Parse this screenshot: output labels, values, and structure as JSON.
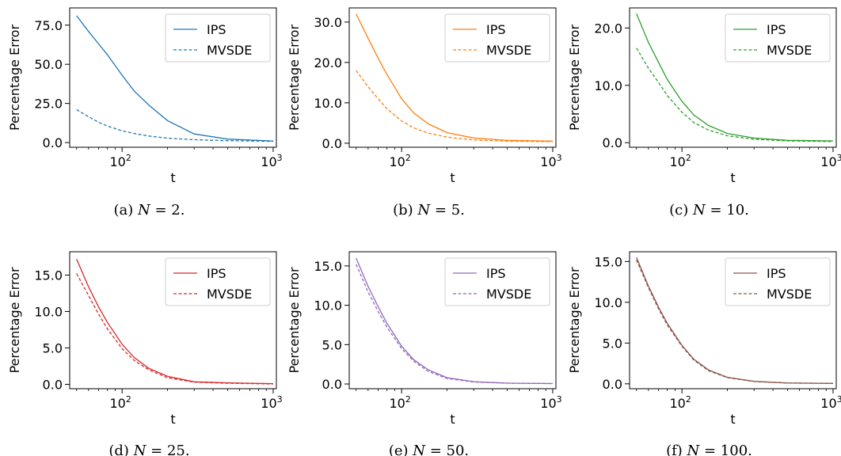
{
  "chart_data": [
    {
      "type": "line",
      "caption_letter": "(a)",
      "caption_N": "2",
      "xlabel": "t",
      "ylabel": "Percentage Error",
      "xscale": "log",
      "xlim": [
        45,
        1050
      ],
      "ylim": [
        -3,
        86
      ],
      "yticks": [
        "0.0",
        "25.0",
        "50.0",
        "75.0"
      ],
      "color": "#1f77b4",
      "legend": "top-right",
      "series": [
        {
          "name": "IPS",
          "style": "solid",
          "x": [
            50,
            60,
            70,
            80,
            100,
            120,
            150,
            200,
            300,
            500,
            1000
          ],
          "y": [
            81,
            71,
            63,
            56,
            43,
            33,
            24,
            14,
            5.5,
            2.2,
            1.0
          ]
        },
        {
          "name": "MVSDE",
          "style": "dashed",
          "x": [
            50,
            60,
            70,
            80,
            100,
            120,
            150,
            200,
            300,
            500,
            1000
          ],
          "y": [
            21,
            16.5,
            13,
            10.5,
            7.5,
            5.8,
            4.2,
            2.8,
            1.8,
            1.2,
            0.8
          ]
        }
      ]
    },
    {
      "type": "line",
      "caption_letter": "(b)",
      "caption_N": "5",
      "xlabel": "t",
      "ylabel": "Percentage Error",
      "xscale": "log",
      "xlim": [
        45,
        1050
      ],
      "ylim": [
        -1,
        33.5
      ],
      "yticks": [
        "0.0",
        "10.0",
        "20.0",
        "30.0"
      ],
      "color": "#ff7f0e",
      "legend": "top-right",
      "series": [
        {
          "name": "IPS",
          "style": "solid",
          "x": [
            50,
            60,
            70,
            80,
            100,
            120,
            150,
            200,
            300,
            500,
            1000
          ],
          "y": [
            32,
            26,
            21,
            17,
            11,
            7.5,
            4.8,
            2.6,
            1.3,
            0.7,
            0.5
          ]
        },
        {
          "name": "MVSDE",
          "style": "dashed",
          "x": [
            50,
            60,
            70,
            80,
            100,
            120,
            150,
            200,
            300,
            500,
            1000
          ],
          "y": [
            18,
            14,
            11,
            8.5,
            5.5,
            3.8,
            2.5,
            1.5,
            0.8,
            0.5,
            0.4
          ]
        }
      ]
    },
    {
      "type": "line",
      "caption_letter": "(c)",
      "caption_N": "10",
      "xlabel": "t",
      "ylabel": "Percentage Error",
      "xscale": "log",
      "xlim": [
        45,
        1050
      ],
      "ylim": [
        -0.8,
        23.5
      ],
      "yticks": [
        "0.0",
        "10.0",
        "20.0"
      ],
      "color": "#2ca02c",
      "legend": "top-right",
      "series": [
        {
          "name": "IPS",
          "style": "solid",
          "x": [
            50,
            60,
            70,
            80,
            100,
            120,
            150,
            200,
            300,
            500,
            1000
          ],
          "y": [
            22.5,
            17.5,
            14,
            11,
            7.2,
            4.8,
            3.0,
            1.6,
            0.8,
            0.4,
            0.3
          ]
        },
        {
          "name": "MVSDE",
          "style": "dashed",
          "x": [
            50,
            60,
            70,
            80,
            100,
            120,
            150,
            200,
            300,
            500,
            1000
          ],
          "y": [
            16.5,
            13,
            10.5,
            8.2,
            5.3,
            3.5,
            2.2,
            1.2,
            0.6,
            0.3,
            0.2
          ]
        }
      ]
    },
    {
      "type": "line",
      "caption_letter": "(d)",
      "caption_N": "25",
      "xlabel": "t",
      "ylabel": "Percentage Error",
      "xscale": "log",
      "xlim": [
        45,
        1050
      ],
      "ylim": [
        -0.6,
        18.2
      ],
      "yticks": [
        "0.0",
        "5.0",
        "10.0",
        "15.0"
      ],
      "color": "#d62728",
      "legend": "top-right",
      "series": [
        {
          "name": "IPS",
          "style": "solid",
          "x": [
            50,
            60,
            70,
            80,
            100,
            120,
            150,
            200,
            300,
            500,
            1000
          ],
          "y": [
            17.2,
            13.4,
            10.6,
            8.5,
            5.5,
            3.7,
            2.2,
            1.1,
            0.35,
            0.2,
            0.1
          ]
        },
        {
          "name": "MVSDE",
          "style": "dashed",
          "x": [
            50,
            60,
            70,
            80,
            100,
            120,
            150,
            200,
            300,
            500,
            1000
          ],
          "y": [
            15.2,
            12.2,
            9.6,
            7.6,
            4.9,
            3.3,
            2.0,
            0.9,
            0.3,
            0.15,
            0.05
          ]
        }
      ]
    },
    {
      "type": "line",
      "caption_letter": "(e)",
      "caption_N": "50",
      "xlabel": "t",
      "ylabel": "Percentage Error",
      "xscale": "log",
      "xlim": [
        45,
        1050
      ],
      "ylim": [
        -0.6,
        16.8
      ],
      "yticks": [
        "0.0",
        "5.0",
        "10.0",
        "15.0"
      ],
      "color": "#9467bd",
      "legend": "top-right",
      "series": [
        {
          "name": "IPS",
          "style": "solid",
          "x": [
            50,
            60,
            70,
            80,
            100,
            120,
            150,
            200,
            300,
            500,
            1000
          ],
          "y": [
            16.0,
            12.4,
            9.8,
            7.7,
            4.8,
            3.1,
            1.8,
            0.8,
            0.3,
            0.1,
            0.05
          ]
        },
        {
          "name": "MVSDE",
          "style": "dashed",
          "x": [
            50,
            60,
            70,
            80,
            100,
            120,
            150,
            200,
            300,
            500,
            1000
          ],
          "y": [
            15.2,
            11.7,
            9.2,
            7.2,
            4.5,
            2.9,
            1.6,
            0.7,
            0.25,
            0.1,
            0.05
          ]
        }
      ]
    },
    {
      "type": "line",
      "caption_letter": "(f)",
      "caption_N": "100",
      "xlabel": "t",
      "ylabel": "Percentage Error",
      "xscale": "log",
      "xlim": [
        45,
        1050
      ],
      "ylim": [
        -0.6,
        16.2
      ],
      "yticks": [
        "0.0",
        "5.0",
        "10.0",
        "15.0"
      ],
      "color": "#8c564b",
      "legend": "top-right",
      "series": [
        {
          "name": "IPS",
          "style": "solid",
          "x": [
            50,
            60,
            70,
            80,
            100,
            120,
            150,
            200,
            300,
            500,
            1000
          ],
          "y": [
            15.5,
            12.0,
            9.4,
            7.4,
            4.7,
            3.0,
            1.7,
            0.8,
            0.3,
            0.1,
            0.05
          ]
        },
        {
          "name": "MVSDE",
          "style": "dashed",
          "x": [
            50,
            60,
            70,
            80,
            100,
            120,
            150,
            200,
            300,
            500,
            1000
          ],
          "y": [
            15.2,
            11.8,
            9.2,
            7.2,
            4.6,
            2.9,
            1.6,
            0.75,
            0.28,
            0.1,
            0.05
          ]
        }
      ]
    }
  ]
}
